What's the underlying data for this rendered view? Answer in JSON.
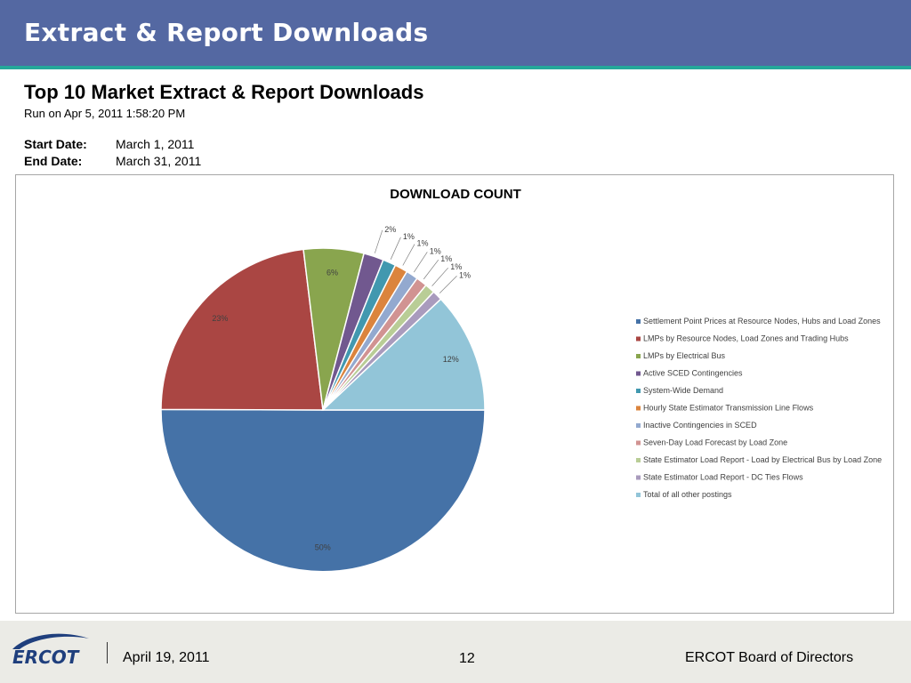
{
  "slide": {
    "title": "Extract & Report Downloads",
    "report_title": "Top 10 Market Extract & Report Downloads",
    "run_on": "Run on Apr 5, 2011  1:58:20 PM",
    "start_label": "Start Date:",
    "start_value": "March 1, 2011",
    "end_label": "End Date:",
    "end_value": "March 31, 2011"
  },
  "footer": {
    "logo_text": "ERCOT",
    "date": "April 19, 2011",
    "page": "12",
    "org": "ERCOT Board of Directors"
  },
  "chart_data": {
    "type": "pie",
    "title": "DOWNLOAD COUNT",
    "legend_position": "right",
    "slices": [
      {
        "label": "Settlement Point Prices at Resource Nodes, Hubs and Load Zones",
        "value": 50,
        "display": "50%",
        "color": "#4572a7"
      },
      {
        "label": "LMPs by Resource Nodes, Load Zones and Trading Hubs",
        "value": 23,
        "display": "23%",
        "color": "#aa4643"
      },
      {
        "label": "LMPs by Electrical Bus",
        "value": 6,
        "display": "6%",
        "color": "#89a54e"
      },
      {
        "label": "Active SCED Contingencies",
        "value": 2,
        "display": "2%",
        "color": "#71588f"
      },
      {
        "label": "System-Wide Demand",
        "value": 1.3,
        "display": "1%",
        "color": "#4198af"
      },
      {
        "label": "Hourly State Estimator Transmission Line Flows",
        "value": 1.3,
        "display": "1%",
        "color": "#db843d"
      },
      {
        "label": "Inactive Contingencies in SCED",
        "value": 1.2,
        "display": "1%",
        "color": "#93a9cf"
      },
      {
        "label": "Seven-Day Load Forecast by Load Zone",
        "value": 1.1,
        "display": "1%",
        "color": "#d19392"
      },
      {
        "label": "State Estimator Load Report - Load by Electrical Bus by Load Zone",
        "value": 1.0,
        "display": "1%",
        "color": "#b9cd96"
      },
      {
        "label": "State Estimator Load Report - DC Ties Flows",
        "value": 1.0,
        "display": "1%",
        "color": "#a99bbd"
      },
      {
        "label": "Total of all other postings",
        "value": 12,
        "display": "12%",
        "color": "#92c5d8"
      }
    ]
  },
  "colors": {
    "header": "#5468a2",
    "header_rule": "#25a89a",
    "footer_band": "#ebebe6",
    "logo": "#1f3f7d"
  }
}
